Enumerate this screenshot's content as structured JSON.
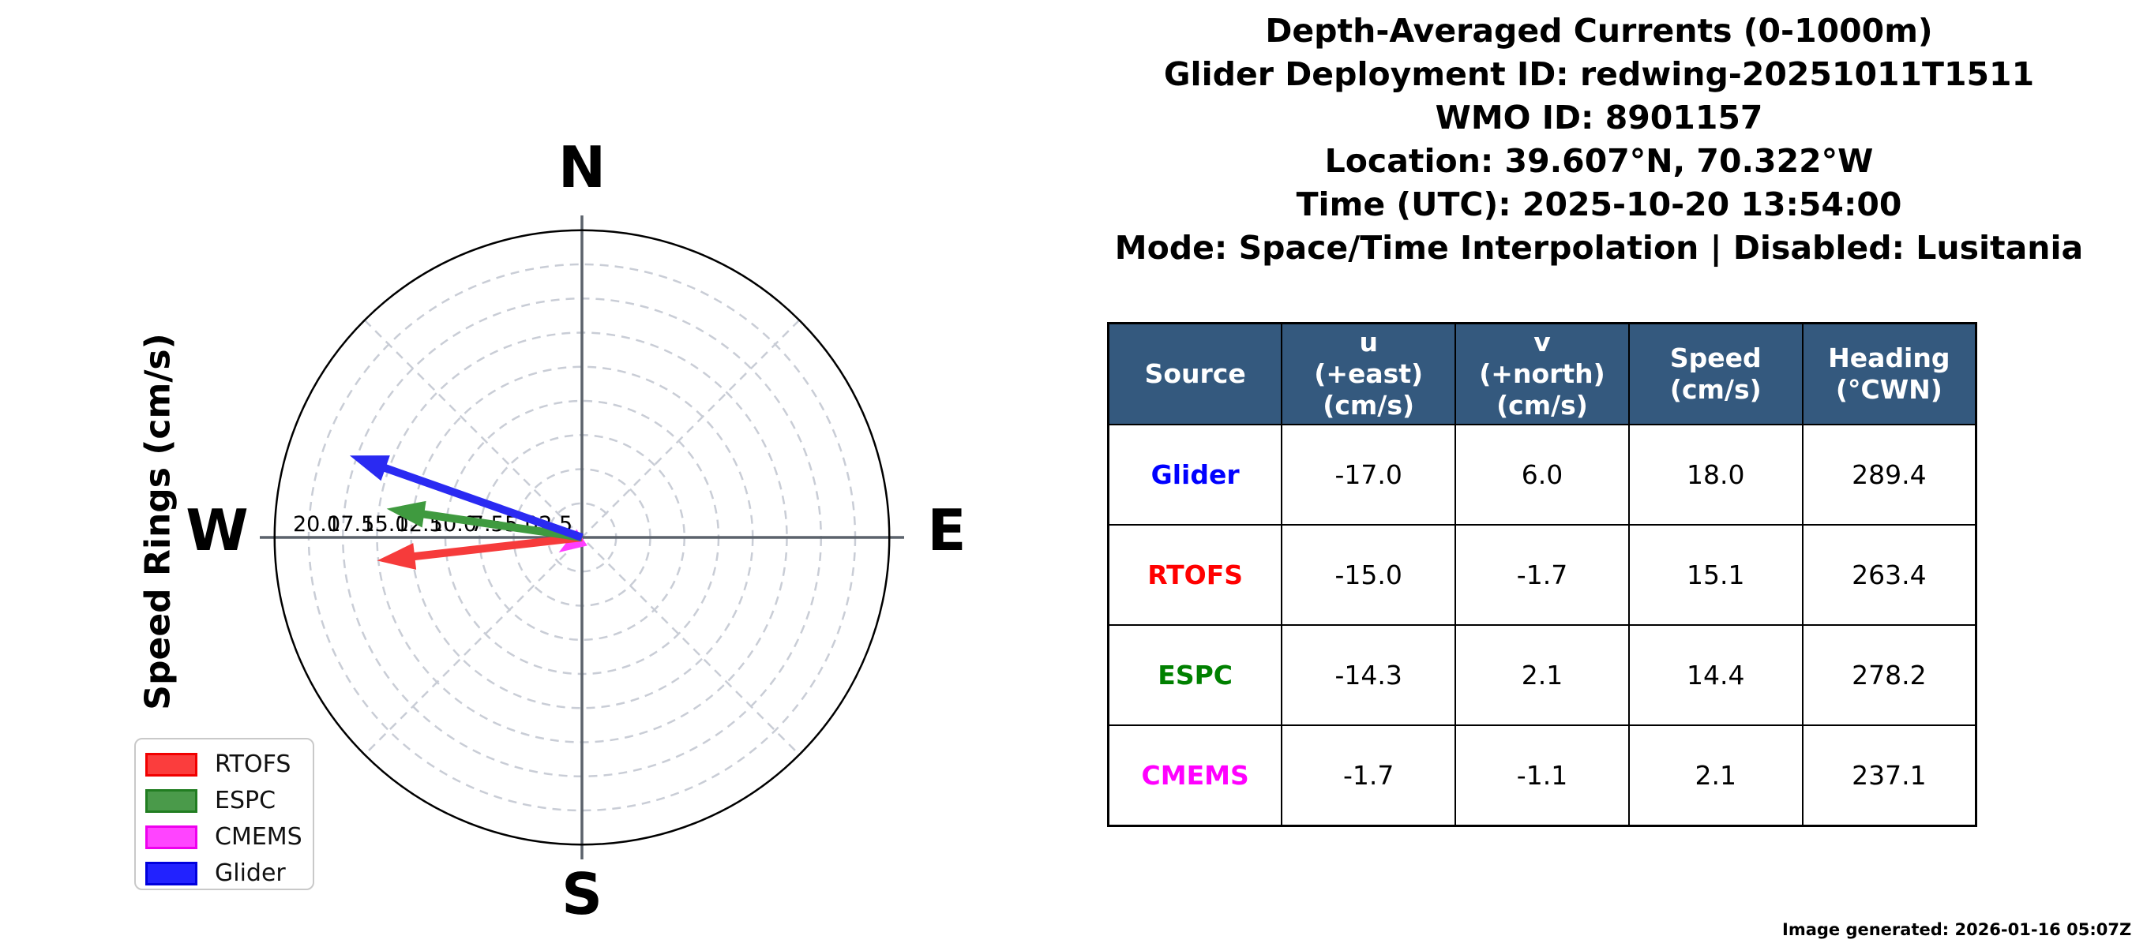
{
  "header": {
    "lines": [
      "Depth-Averaged Currents (0-1000m)",
      "Glider Deployment ID: redwing-20251011T1511",
      "WMO ID: 8901157",
      "Location: 39.607°N, 70.322°W",
      "Time (UTC): 2025-10-20 13:54:00",
      "Mode: Space/Time Interpolation | Disabled: Lusitania"
    ]
  },
  "polar": {
    "compass": {
      "north": "N",
      "east": "E",
      "south": "S",
      "west": "W"
    },
    "axis_label": "Speed Rings (cm/s)"
  },
  "chart_data": {
    "type": "scatter",
    "subtype": "polar-vector-compass",
    "title": "Depth-Averaged Currents (0-1000m)",
    "radial_axis_label": "Speed Rings (cm/s)",
    "ring_ticks_cm_s": [
      2.5,
      5.0,
      7.5,
      10.0,
      12.5,
      15.0,
      17.5,
      20.0
    ],
    "r_max_cm_s": 22.5,
    "compass_labels": [
      "N",
      "E",
      "S",
      "W"
    ],
    "grid": true,
    "legend_position": "lower left",
    "series": [
      {
        "name": "RTOFS",
        "u": -15.0,
        "v": -1.7,
        "speed": 15.1,
        "heading_deg_cwn": 263.4,
        "color": "#f63b3b"
      },
      {
        "name": "ESPC",
        "u": -14.3,
        "v": 2.1,
        "speed": 14.4,
        "heading_deg_cwn": 278.2,
        "color": "#3f9a3f"
      },
      {
        "name": "CMEMS",
        "u": -1.7,
        "v": -1.1,
        "speed": 2.1,
        "heading_deg_cwn": 237.1,
        "color": "#ff3dff"
      },
      {
        "name": "Glider",
        "u": -17.0,
        "v": 6.0,
        "speed": 18.0,
        "heading_deg_cwn": 289.4,
        "color": "#2a2af2"
      }
    ],
    "draw_order": [
      "CMEMS",
      "RTOFS",
      "ESPC",
      "Glider"
    ]
  },
  "legend": {
    "items": [
      {
        "label": "RTOFS",
        "face": "#fb3d3d",
        "edge": "#f10000"
      },
      {
        "label": "ESPC",
        "face": "#4a9a4a",
        "edge": "#217d21"
      },
      {
        "label": "CMEMS",
        "face": "#ff44ff",
        "edge": "#ee00ee"
      },
      {
        "label": "Glider",
        "face": "#2222ff",
        "edge": "#0000dd"
      }
    ]
  },
  "table": {
    "header_bg": "#34597e",
    "headers": [
      "Source",
      "u\n(+east)\n(cm/s)",
      "v\n(+north)\n(cm/s)",
      "Speed\n(cm/s)",
      "Heading\n(°CWN)"
    ],
    "rows": [
      {
        "source": "Glider",
        "color": "#0000ff",
        "u": "-17.0",
        "v": "6.0",
        "speed": "18.0",
        "heading": "289.4"
      },
      {
        "source": "RTOFS",
        "color": "#ff0000",
        "u": "-15.0",
        "v": "-1.7",
        "speed": "15.1",
        "heading": "263.4"
      },
      {
        "source": "ESPC",
        "color": "#008000",
        "u": "-14.3",
        "v": "2.1",
        "speed": "14.4",
        "heading": "278.2"
      },
      {
        "source": "CMEMS",
        "color": "#ff00ff",
        "u": "-1.7",
        "v": "-1.1",
        "speed": "2.1",
        "heading": "237.1"
      }
    ]
  },
  "footer": {
    "generated": "Image generated: 2026-01-16 05:07Z"
  }
}
